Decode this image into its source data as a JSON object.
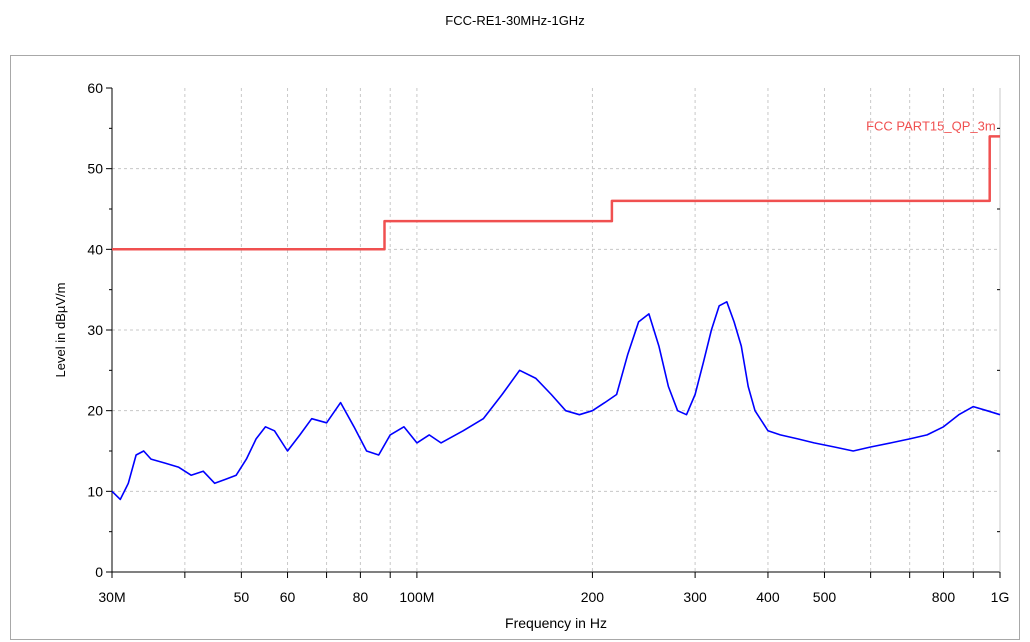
{
  "chart_data": {
    "type": "line",
    "title": "FCC-RE1-30MHz-1GHz",
    "xlabel": "Frequency in Hz",
    "ylabel": "Level in dBµV/m",
    "x_scale": "log",
    "xlim": [
      30000000,
      1000000000
    ],
    "ylim": [
      0,
      60
    ],
    "grid": true,
    "x_tick_labels": [
      {
        "value": 30000000,
        "label": "30M"
      },
      {
        "value": 50000000,
        "label": "50"
      },
      {
        "value": 60000000,
        "label": "60"
      },
      {
        "value": 80000000,
        "label": "80"
      },
      {
        "value": 100000000,
        "label": "100M"
      },
      {
        "value": 200000000,
        "label": "200"
      },
      {
        "value": 300000000,
        "label": "300"
      },
      {
        "value": 400000000,
        "label": "400"
      },
      {
        "value": 500000000,
        "label": "500"
      },
      {
        "value": 800000000,
        "label": "800"
      },
      {
        "value": 1000000000,
        "label": "1G"
      }
    ],
    "y_ticks": [
      0,
      10,
      20,
      30,
      40,
      50,
      60
    ],
    "series": [
      {
        "name": "FCC PART15_QP_3m",
        "color": "#f05050",
        "x": [
          30000000,
          88000000,
          88000000,
          216000000,
          216000000,
          960000000,
          960000000,
          1000000000
        ],
        "y": [
          40.0,
          40.0,
          43.5,
          43.5,
          46.0,
          46.0,
          54.0,
          54.0
        ]
      },
      {
        "color": "#0000ff",
        "x": [
          30000000,
          31000000,
          32000000,
          33000000,
          34000000,
          35000000,
          37000000,
          39000000,
          41000000,
          43000000,
          45000000,
          47000000,
          49000000,
          51000000,
          53000000,
          55000000,
          57000000,
          60000000,
          63000000,
          66000000,
          70000000,
          74000000,
          78000000,
          82000000,
          86000000,
          90000000,
          95000000,
          100000000,
          105000000,
          110000000,
          120000000,
          130000000,
          140000000,
          150000000,
          160000000,
          170000000,
          180000000,
          190000000,
          200000000,
          210000000,
          220000000,
          230000000,
          240000000,
          250000000,
          260000000,
          270000000,
          280000000,
          290000000,
          300000000,
          310000000,
          320000000,
          330000000,
          340000000,
          350000000,
          360000000,
          370000000,
          380000000,
          400000000,
          420000000,
          450000000,
          480000000,
          520000000,
          560000000,
          600000000,
          650000000,
          700000000,
          750000000,
          800000000,
          850000000,
          900000000,
          950000000,
          1000000000
        ],
        "y": [
          10.0,
          9.0,
          11.0,
          14.5,
          15.0,
          14.0,
          13.5,
          13.0,
          12.0,
          12.5,
          11.0,
          11.5,
          12.0,
          14.0,
          16.5,
          18.0,
          17.5,
          15.0,
          17.0,
          19.0,
          18.5,
          21.0,
          18.0,
          15.0,
          14.5,
          17.0,
          18.0,
          16.0,
          17.0,
          16.0,
          17.5,
          19.0,
          22.0,
          25.0,
          24.0,
          22.0,
          20.0,
          19.5,
          20.0,
          21.0,
          22.0,
          27.0,
          31.0,
          32.0,
          28.0,
          23.0,
          20.0,
          19.5,
          22.0,
          26.0,
          30.0,
          33.0,
          33.5,
          31.0,
          28.0,
          23.0,
          20.0,
          17.5,
          17.0,
          16.5,
          16.0,
          15.5,
          15.0,
          15.5,
          16.0,
          16.5,
          17.0,
          18.0,
          19.5,
          20.5,
          20.0,
          19.5
        ]
      }
    ],
    "annotations": [
      {
        "text": "FCC PART15_QP_3m",
        "x": 960000000,
        "y": 54.0,
        "color": "#f05050"
      }
    ]
  }
}
